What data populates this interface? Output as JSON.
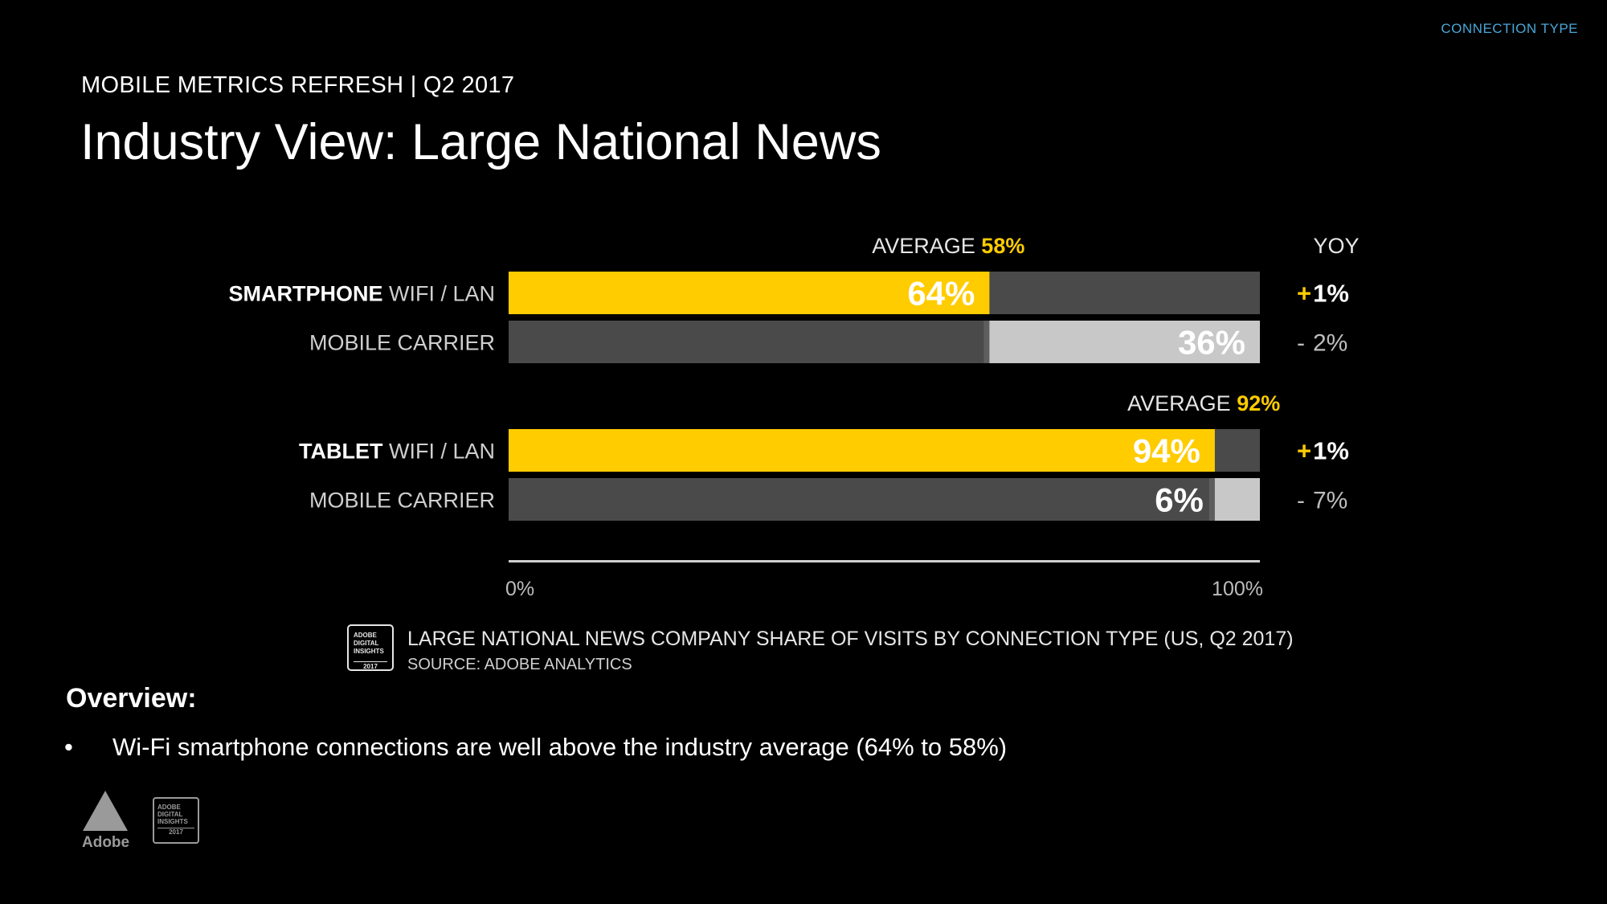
{
  "header": {
    "section_tag": "CONNECTION TYPE",
    "eyebrow": "MOBILE METRICS REFRESH | Q2 2017",
    "title": "Industry View: Large National News"
  },
  "colors": {
    "background": "#000000",
    "wifi_fill": "#ffcc00",
    "carrier_fill": "#c8c8c8",
    "track": "#4a4a4a",
    "label_gray": "#cfcfcf",
    "accent_text": "#ffcc00",
    "section_tag": "#4aa6d8"
  },
  "chart_data": {
    "type": "bar",
    "orientation": "horizontal",
    "stacked_to_100": true,
    "title": "LARGE NATIONAL NEWS COMPANY SHARE OF VISITS BY CONNECTION TYPE (US, Q2 2017)",
    "source": "SOURCE: ADOBE ANALYTICS",
    "badge_text": [
      "ADOBE",
      "DIGITAL",
      "INSIGHTS",
      "2017"
    ],
    "x_ticks": [
      "0%",
      "100%"
    ],
    "xlim": [
      0,
      100
    ],
    "yoy_header": "YOY",
    "groups": [
      {
        "device": "SMARTPHONE",
        "average_label": "AVERAGE",
        "average_value": "58%",
        "average_num": 58,
        "rows": [
          {
            "connection": "WIFI / LAN",
            "value": 64,
            "label": "64%",
            "yoy_sign": "+",
            "yoy_value": "1%",
            "highlight": true
          },
          {
            "connection": "MOBILE CARRIER",
            "value": 36,
            "label": "36%",
            "yoy_sign": "-",
            "yoy_value": "2%",
            "highlight": false
          }
        ]
      },
      {
        "device": "TABLET",
        "average_label": "AVERAGE",
        "average_value": "92%",
        "average_num": 92,
        "rows": [
          {
            "connection": "WIFI / LAN",
            "value": 94,
            "label": "94%",
            "yoy_sign": "+",
            "yoy_value": "1%",
            "highlight": true
          },
          {
            "connection": "MOBILE CARRIER",
            "value": 6,
            "label": "6%",
            "yoy_sign": "-",
            "yoy_value": "7%",
            "highlight": false
          }
        ]
      }
    ]
  },
  "overview": {
    "heading": "Overview:",
    "bullets": [
      "Wi-Fi smartphone connections are well above the industry average (64% to 58%)"
    ]
  },
  "footer": {
    "logo_word": "Adobe",
    "badge_lines": [
      "ADOBE",
      "DIGITAL",
      "INSIGHTS",
      "2017"
    ]
  }
}
